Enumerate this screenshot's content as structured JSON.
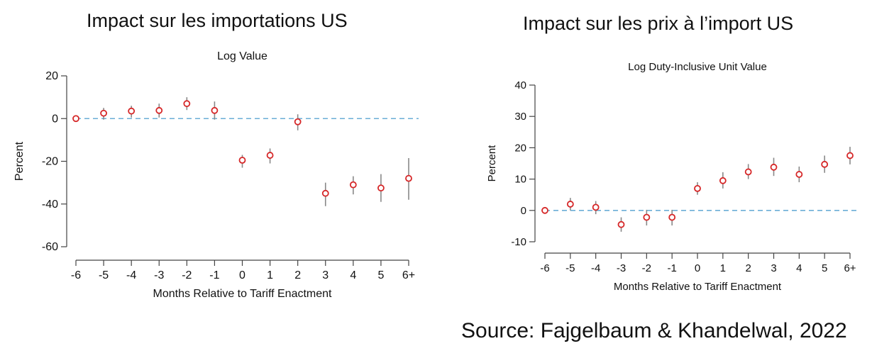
{
  "panels": {
    "left_title": "Impact sur les importations US",
    "right_title": "Impact sur les prix à l’import US"
  },
  "source": "Source: Fajgelbaum & Khandelwal, 2022",
  "colors": {
    "marker": "#d62728",
    "errorbar": "#888888",
    "zero_line": "#6baed6",
    "axis": "#444444"
  },
  "chart_data": [
    {
      "type": "scatter",
      "title": "Log Value",
      "xlabel": "Months Relative to Tariff Enactment",
      "ylabel": "Percent",
      "categories": [
        "-6",
        "-5",
        "-4",
        "-3",
        "-2",
        "-1",
        "0",
        "1",
        "2",
        "3",
        "4",
        "5",
        "6+"
      ],
      "yticks": [
        20,
        0,
        -20,
        -40,
        -60
      ],
      "ylim": [
        -60,
        20
      ],
      "reference_line": 0,
      "series": [
        {
          "values": [
            0,
            2.5,
            3.5,
            3.8,
            7,
            3.8,
            -19.5,
            -17.2,
            -1.5,
            -35,
            -31,
            -32.5,
            -28
          ],
          "lower": [
            0,
            -0.5,
            0.5,
            0.5,
            4,
            -0.5,
            -23,
            -21,
            -5.5,
            -41,
            -35.5,
            -39,
            -38
          ],
          "upper": [
            0,
            5,
            6,
            7,
            10,
            8,
            -17,
            -14,
            2,
            -30,
            -27,
            -26,
            -18.5
          ]
        }
      ],
      "grid": false
    },
    {
      "type": "scatter",
      "title": "Log Duty-Inclusive Unit Value",
      "xlabel": "Months Relative to Tariff Enactment",
      "ylabel": "Percent",
      "categories": [
        "-6",
        "-5",
        "-4",
        "-3",
        "-2",
        "-1",
        "0",
        "1",
        "2",
        "3",
        "4",
        "5",
        "6+"
      ],
      "yticks": [
        40,
        30,
        20,
        10,
        0,
        -10
      ],
      "ylim": [
        -10,
        40
      ],
      "reference_line": 0,
      "series": [
        {
          "values": [
            0,
            2,
            1,
            -4.5,
            -2.2,
            -2.2,
            7,
            9.5,
            12.3,
            13.8,
            11.5,
            14.7,
            17.5
          ],
          "lower": [
            0,
            0,
            -1.2,
            -6.8,
            -4.8,
            -4.8,
            5,
            7,
            10,
            11,
            9,
            12,
            14.7
          ],
          "upper": [
            0,
            4,
            3,
            -2.2,
            0.2,
            0.2,
            9,
            12.2,
            14.8,
            16.8,
            14,
            17.5,
            20.3
          ]
        }
      ],
      "grid": false
    }
  ]
}
